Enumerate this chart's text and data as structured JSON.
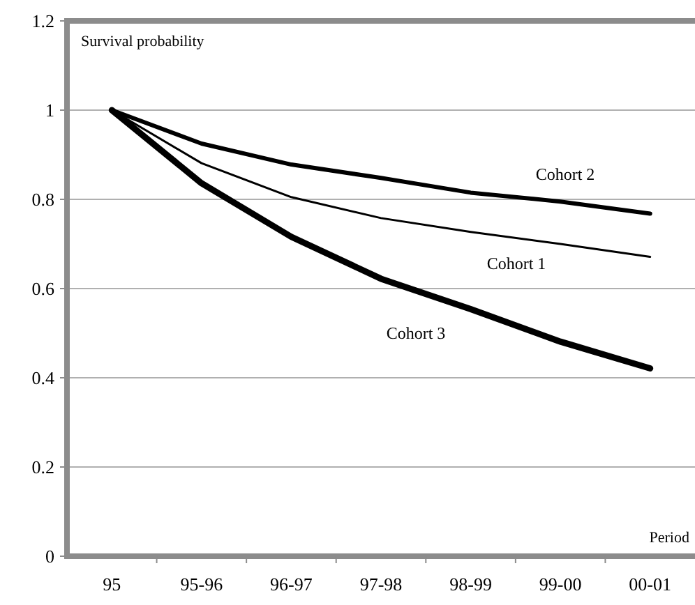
{
  "chart_data": {
    "type": "line",
    "ylabel": "Survival probability",
    "xlabel": "Period",
    "categories": [
      "95",
      "95-96",
      "96-97",
      "97-98",
      "98-99",
      "99-00",
      "00-01"
    ],
    "ylim": [
      0,
      1.2
    ],
    "yticks": [
      0,
      0.2,
      0.4,
      0.6,
      0.8,
      1,
      1.2
    ],
    "grid": "y",
    "marker": "none",
    "line_style": "solid",
    "series": [
      {
        "name": "Cohort 1",
        "color": "#000000",
        "values": [
          1,
          0.881,
          0.805,
          0.758,
          0.727,
          0.7,
          0.671
        ]
      },
      {
        "name": "Cohort 2",
        "color": "#000000",
        "values": [
          1,
          0.925,
          0.878,
          0.848,
          0.815,
          0.795,
          0.768
        ]
      },
      {
        "name": "Cohort 3",
        "color": "#000000",
        "values": [
          1,
          0.836,
          0.716,
          0.622,
          0.554,
          0.481,
          0.421
        ]
      }
    ]
  }
}
